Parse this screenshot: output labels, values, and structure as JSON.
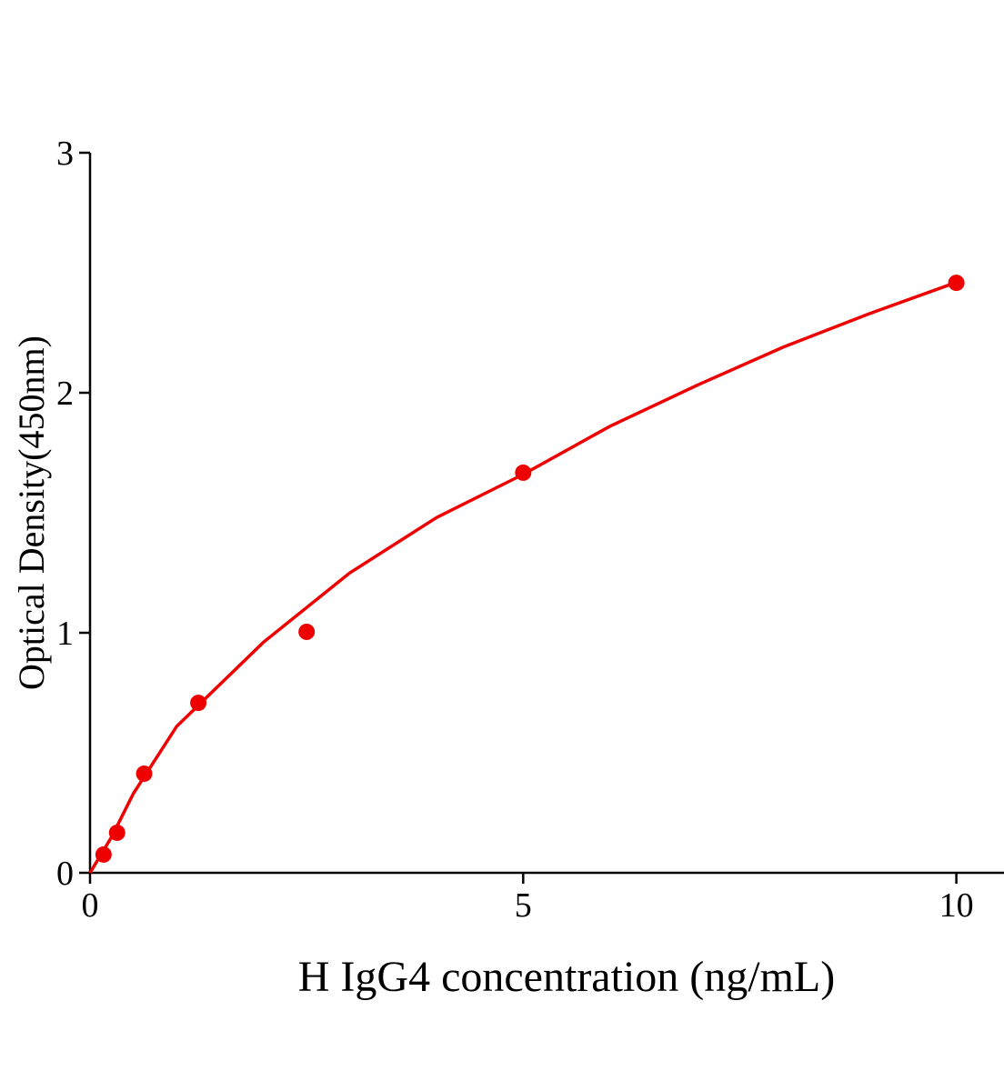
{
  "chart_data": {
    "type": "scatter",
    "x_label": "H IgG4 concentration (ng/mL)",
    "y_label": "Optical Density(450nm)",
    "xlim": [
      0,
      10.55
    ],
    "xticks": [
      0,
      5,
      10
    ],
    "ylim": [
      0,
      3
    ],
    "yticks": [
      0,
      1,
      2,
      3
    ],
    "color": "#ee0000",
    "points": {
      "x": [
        0.156,
        0.3125,
        0.625,
        1.25,
        2.5,
        5,
        10
      ],
      "values": [
        0.076,
        0.167,
        0.413,
        0.708,
        1.004,
        1.667,
        2.458
      ]
    },
    "fit": {
      "x": [
        0,
        0.25,
        0.5,
        1,
        2,
        3,
        4,
        5,
        6,
        7,
        8,
        9,
        10
      ],
      "values": [
        0,
        0.15,
        0.33,
        0.61,
        0.96,
        1.25,
        1.48,
        1.66,
        1.86,
        2.03,
        2.19,
        2.33,
        2.46
      ]
    }
  }
}
